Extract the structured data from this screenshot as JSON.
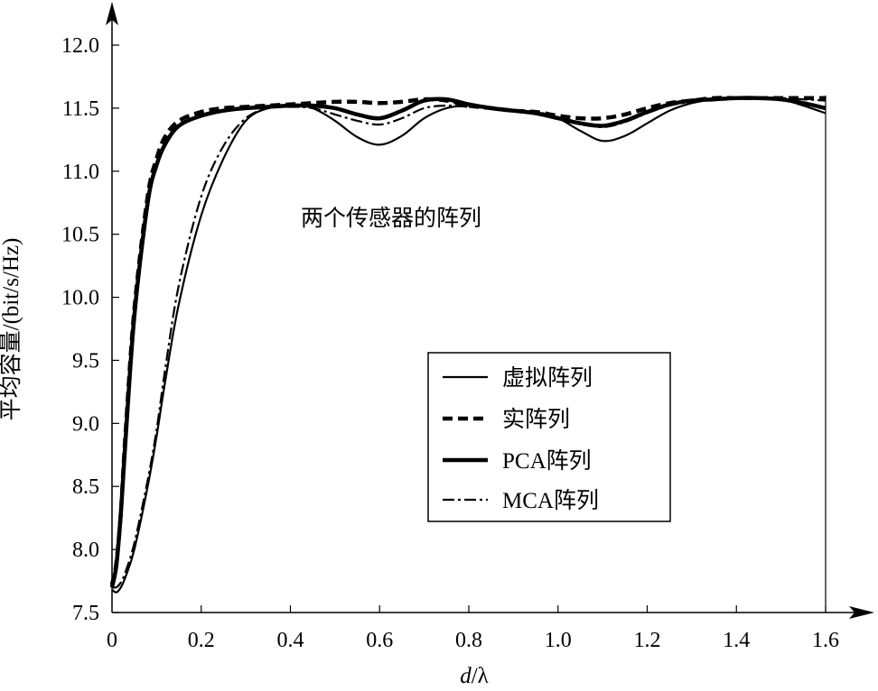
{
  "chart_data": {
    "type": "line",
    "title": "",
    "annotation": "两个传感器的阵列",
    "xlabel_italic": "d",
    "xlabel_rest": "/λ",
    "ylabel": "平均容量/(bit/s/Hz)",
    "xlim": [
      0,
      1.6
    ],
    "ylim": [
      7.5,
      12.0
    ],
    "xticks": [
      "0",
      "0.2",
      "0.4",
      "0.6",
      "0.8",
      "1.0",
      "1.2",
      "1.4",
      "1.6"
    ],
    "yticks": [
      "7.5",
      "8.0",
      "8.5",
      "9.0",
      "9.5",
      "10.0",
      "10.5",
      "11.0",
      "11.5",
      "12.0"
    ],
    "grid": false,
    "legend_position": "center-right",
    "x": [
      0,
      0.01,
      0.02,
      0.03,
      0.05,
      0.08,
      0.1,
      0.12,
      0.15,
      0.2,
      0.25,
      0.3,
      0.35,
      0.4,
      0.45,
      0.5,
      0.55,
      0.6,
      0.65,
      0.7,
      0.75,
      0.8,
      0.85,
      0.9,
      0.95,
      1.0,
      1.05,
      1.1,
      1.15,
      1.2,
      1.25,
      1.3,
      1.35,
      1.4,
      1.45,
      1.5,
      1.55,
      1.6
    ],
    "series": [
      {
        "name": "虚拟阵列",
        "style": "solid-thin",
        "values": [
          7.68,
          7.66,
          7.7,
          7.78,
          8.0,
          8.5,
          8.9,
          9.35,
          9.95,
          10.65,
          11.1,
          11.4,
          11.5,
          11.52,
          11.5,
          11.4,
          11.27,
          11.21,
          11.28,
          11.42,
          11.5,
          11.52,
          11.5,
          11.48,
          11.46,
          11.42,
          11.32,
          11.24,
          11.28,
          11.38,
          11.48,
          11.54,
          11.57,
          11.58,
          11.58,
          11.57,
          11.52,
          11.46
        ]
      },
      {
        "name": "实阵列",
        "style": "dashed",
        "values": [
          7.72,
          7.9,
          8.3,
          8.9,
          9.9,
          10.8,
          11.1,
          11.28,
          11.4,
          11.47,
          11.5,
          11.51,
          11.52,
          11.53,
          11.54,
          11.55,
          11.55,
          11.54,
          11.55,
          11.57,
          11.56,
          11.52,
          11.5,
          11.48,
          11.47,
          11.44,
          11.42,
          11.42,
          11.45,
          11.5,
          11.54,
          11.56,
          11.58,
          11.58,
          11.58,
          11.58,
          11.58,
          11.58
        ]
      },
      {
        "name": "PCA阵列",
        "style": "solid-thick",
        "values": [
          7.7,
          7.88,
          8.3,
          8.85,
          9.85,
          10.75,
          11.05,
          11.22,
          11.36,
          11.44,
          11.48,
          11.5,
          11.51,
          11.52,
          11.52,
          11.5,
          11.45,
          11.42,
          11.48,
          11.56,
          11.57,
          11.53,
          11.5,
          11.48,
          11.46,
          11.42,
          11.38,
          11.36,
          11.4,
          11.47,
          11.53,
          11.56,
          11.57,
          11.58,
          11.58,
          11.57,
          11.54,
          11.5
        ]
      },
      {
        "name": "MCA阵列",
        "style": "dash-dot",
        "values": [
          7.7,
          7.7,
          7.74,
          7.82,
          8.05,
          8.55,
          8.95,
          9.45,
          10.1,
          10.8,
          11.2,
          11.42,
          11.5,
          11.51,
          11.5,
          11.45,
          11.4,
          11.37,
          11.42,
          11.5,
          11.52,
          11.51,
          11.5,
          11.48,
          11.47,
          11.43,
          11.38,
          11.35,
          11.39,
          11.46,
          11.52,
          11.55,
          11.57,
          11.58,
          11.58,
          11.58,
          11.57,
          11.56
        ]
      }
    ]
  }
}
